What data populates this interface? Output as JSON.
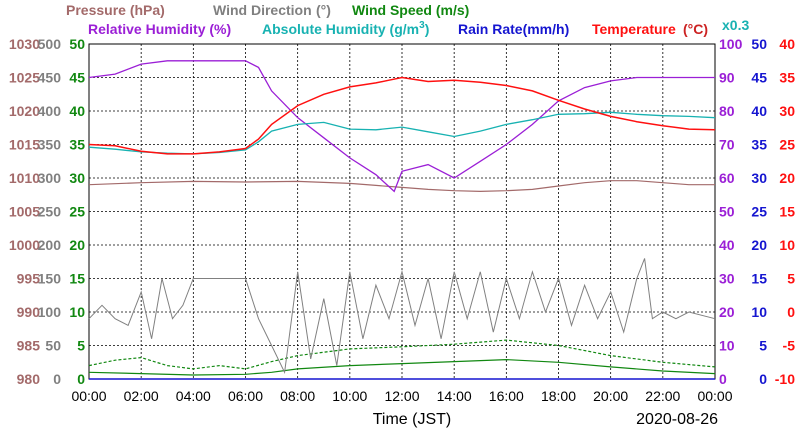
{
  "chart_data": {
    "type": "line",
    "date": "2020-08-26",
    "xlabel": "Time (JST)",
    "x_ticks": [
      "00:00",
      "02:00",
      "04:00",
      "06:00",
      "08:00",
      "10:00",
      "12:00",
      "14:00",
      "16:00",
      "18:00",
      "20:00",
      "22:00",
      "00:00"
    ],
    "headers": {
      "pressure": "Pressure (hPa)",
      "wind_direction": "Wind Direction",
      "wind_direction_unit": "(°)",
      "wind_speed": "Wind Speed (m/s)",
      "relative_humidity": "Relative Humidity (%)",
      "absolute_humidity": "Absolute Humidity (g/m",
      "absolute_humidity_sup": "3",
      "absolute_humidity_close": ")",
      "rain_rate": "Rain Rate(mm/h)",
      "temperature": "Temperature",
      "temperature_unit": "(°C)",
      "scale_note": "x0.3"
    },
    "axes": {
      "pressure": {
        "min": 980,
        "max": 1030,
        "ticks": [
          "1030",
          "1025",
          "1020",
          "1015",
          "1010",
          "1005",
          "1000",
          "995",
          "990",
          "985",
          "980"
        ]
      },
      "wind_direction": {
        "min": 0,
        "max": 500,
        "ticks": [
          "500",
          "450",
          "400",
          "350",
          "300",
          "250",
          "200",
          "150",
          "100",
          "50",
          "0"
        ]
      },
      "wind_speed": {
        "min": 0,
        "max": 50,
        "ticks": [
          "50",
          "45",
          "40",
          "35",
          "30",
          "25",
          "20",
          "15",
          "10",
          "5",
          "0"
        ]
      },
      "relative_humidity": {
        "min": 0,
        "max": 100,
        "ticks": [
          "100",
          "90",
          "80",
          "70",
          "60",
          "50",
          "40",
          "30",
          "20",
          "10",
          "0"
        ]
      },
      "rain_rate": {
        "min": 0,
        "max": 50,
        "ticks": [
          "50",
          "45",
          "40",
          "35",
          "30",
          "25",
          "20",
          "15",
          "10",
          "5",
          "0"
        ]
      },
      "temperature": {
        "min": -10,
        "max": 40,
        "ticks": [
          "40",
          "35",
          "30",
          "25",
          "20",
          "15",
          "10",
          "5",
          "0",
          "-5",
          "-10"
        ]
      }
    },
    "grid": true,
    "colors": {
      "pressure": "#a36a6a",
      "wind_direction": "#808080",
      "wind_speed": "#118811",
      "relative_humidity": "#9b1fd6",
      "absolute_humidity": "#18b2b2",
      "rain_rate": "#1515d0",
      "temperature": "#ff1010",
      "temperature_unit_color": "#cc2222"
    },
    "series": {
      "temperature": [
        [
          0,
          25.0
        ],
        [
          1,
          24.8
        ],
        [
          2,
          24.0
        ],
        [
          3,
          23.6
        ],
        [
          4,
          23.6
        ],
        [
          5,
          23.9
        ],
        [
          6,
          24.4
        ],
        [
          6.5,
          25.8
        ],
        [
          7,
          28.0
        ],
        [
          8,
          30.8
        ],
        [
          9,
          32.5
        ],
        [
          10,
          33.6
        ],
        [
          11,
          34.2
        ],
        [
          11.5,
          34.6
        ],
        [
          12,
          35.0
        ],
        [
          12.5,
          34.7
        ],
        [
          13,
          34.4
        ],
        [
          14,
          34.6
        ],
        [
          15,
          34.3
        ],
        [
          16,
          33.8
        ],
        [
          17,
          33.0
        ],
        [
          18,
          31.6
        ],
        [
          19,
          30.3
        ],
        [
          20,
          29.2
        ],
        [
          21,
          28.4
        ],
        [
          22,
          27.8
        ],
        [
          23,
          27.3
        ],
        [
          24,
          27.2
        ]
      ],
      "absolute_humidity_scaled": [
        [
          0,
          24.6
        ],
        [
          1,
          24.3
        ],
        [
          2,
          23.9
        ],
        [
          3,
          23.7
        ],
        [
          4,
          23.6
        ],
        [
          5,
          23.8
        ],
        [
          6,
          24.2
        ],
        [
          6.5,
          25.4
        ],
        [
          7,
          27.0
        ],
        [
          8,
          28.0
        ],
        [
          9,
          28.3
        ],
        [
          10,
          27.3
        ],
        [
          11,
          27.2
        ],
        [
          12,
          27.6
        ],
        [
          13,
          26.9
        ],
        [
          14,
          26.2
        ],
        [
          15,
          27.0
        ],
        [
          16,
          28.0
        ],
        [
          17,
          28.7
        ],
        [
          18,
          29.5
        ],
        [
          19,
          29.6
        ],
        [
          20,
          29.8
        ],
        [
          21,
          29.5
        ],
        [
          22,
          29.3
        ],
        [
          23,
          29.2
        ],
        [
          24,
          29.0
        ]
      ],
      "relative_humidity": [
        [
          0,
          90
        ],
        [
          1,
          91
        ],
        [
          2,
          94
        ],
        [
          3,
          95
        ],
        [
          4,
          95
        ],
        [
          5,
          95
        ],
        [
          6,
          95
        ],
        [
          6.5,
          93
        ],
        [
          7,
          86
        ],
        [
          8,
          78
        ],
        [
          9,
          72
        ],
        [
          10,
          66
        ],
        [
          11,
          61
        ],
        [
          11.7,
          56
        ],
        [
          12,
          62
        ],
        [
          13,
          64
        ],
        [
          14,
          60
        ],
        [
          15,
          65
        ],
        [
          16,
          70
        ],
        [
          17,
          76
        ],
        [
          18,
          83
        ],
        [
          19,
          87
        ],
        [
          20,
          89
        ],
        [
          21,
          90
        ],
        [
          22,
          90
        ],
        [
          23,
          90
        ],
        [
          24,
          90
        ]
      ],
      "pressure": [
        [
          0,
          1009.0
        ],
        [
          2,
          1009.3
        ],
        [
          4,
          1009.5
        ],
        [
          6,
          1009.4
        ],
        [
          8,
          1009.5
        ],
        [
          10,
          1009.2
        ],
        [
          11,
          1008.9
        ],
        [
          12,
          1008.6
        ],
        [
          13,
          1008.3
        ],
        [
          14,
          1008.1
        ],
        [
          15,
          1008.0
        ],
        [
          16,
          1008.1
        ],
        [
          17,
          1008.3
        ],
        [
          18,
          1008.8
        ],
        [
          19,
          1009.3
        ],
        [
          20,
          1009.6
        ],
        [
          21,
          1009.6
        ],
        [
          22,
          1009.3
        ],
        [
          23,
          1009.0
        ],
        [
          24,
          1009.0
        ]
      ],
      "wind_direction": [
        [
          0,
          90
        ],
        [
          0.5,
          110
        ],
        [
          1,
          90
        ],
        [
          1.5,
          80
        ],
        [
          2,
          130
        ],
        [
          2.4,
          60
        ],
        [
          2.8,
          150
        ],
        [
          3.2,
          90
        ],
        [
          3.6,
          110
        ],
        [
          4,
          150
        ],
        [
          4.5,
          150
        ],
        [
          5,
          150
        ],
        [
          5.5,
          150
        ],
        [
          6,
          150
        ],
        [
          6.5,
          90
        ],
        [
          7,
          50
        ],
        [
          7.5,
          10
        ],
        [
          8,
          160
        ],
        [
          8.5,
          30
        ],
        [
          9,
          120
        ],
        [
          9.5,
          20
        ],
        [
          10,
          160
        ],
        [
          10.5,
          60
        ],
        [
          11,
          140
        ],
        [
          11.5,
          90
        ],
        [
          12,
          160
        ],
        [
          12.5,
          80
        ],
        [
          13,
          150
        ],
        [
          13.5,
          60
        ],
        [
          14,
          160
        ],
        [
          14.5,
          90
        ],
        [
          15,
          160
        ],
        [
          15.5,
          70
        ],
        [
          16,
          150
        ],
        [
          16.5,
          90
        ],
        [
          17,
          160
        ],
        [
          17.5,
          100
        ],
        [
          18,
          150
        ],
        [
          18.5,
          80
        ],
        [
          19,
          140
        ],
        [
          19.5,
          90
        ],
        [
          20,
          130
        ],
        [
          20.5,
          70
        ],
        [
          21,
          150
        ],
        [
          21.3,
          180
        ],
        [
          21.6,
          90
        ],
        [
          22,
          100
        ],
        [
          22.5,
          90
        ],
        [
          23,
          100
        ],
        [
          24,
          90
        ]
      ],
      "wind_speed_avg": [
        [
          0,
          1.0
        ],
        [
          2,
          0.8
        ],
        [
          4,
          0.6
        ],
        [
          6,
          0.7
        ],
        [
          7,
          1.0
        ],
        [
          8,
          1.5
        ],
        [
          10,
          2.0
        ],
        [
          12,
          2.3
        ],
        [
          14,
          2.6
        ],
        [
          16,
          2.9
        ],
        [
          18,
          2.5
        ],
        [
          20,
          1.8
        ],
        [
          22,
          1.2
        ],
        [
          24,
          0.8
        ]
      ],
      "wind_speed_gust": [
        [
          0,
          2.0
        ],
        [
          1,
          2.8
        ],
        [
          2,
          3.2
        ],
        [
          3,
          2.0
        ],
        [
          4,
          1.5
        ],
        [
          5,
          2.0
        ],
        [
          6,
          1.5
        ],
        [
          7,
          2.6
        ],
        [
          8,
          3.5
        ],
        [
          10,
          4.5
        ],
        [
          12,
          4.8
        ],
        [
          14,
          5.2
        ],
        [
          16,
          5.8
        ],
        [
          18,
          5.0
        ],
        [
          20,
          3.5
        ],
        [
          22,
          2.5
        ],
        [
          24,
          1.8
        ]
      ],
      "rain_rate": [
        [
          0,
          0
        ],
        [
          24,
          0
        ]
      ]
    }
  }
}
